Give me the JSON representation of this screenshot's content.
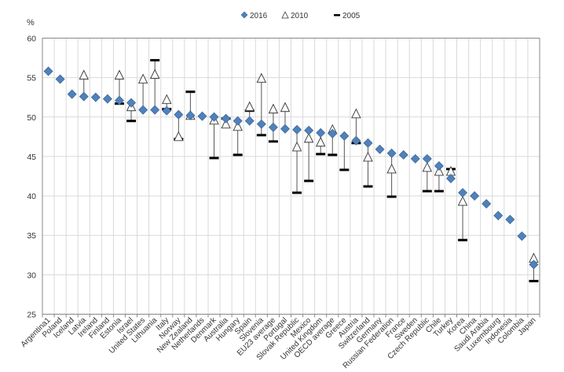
{
  "chart_data": {
    "type": "scatter",
    "title": "",
    "ylabel": "%",
    "xlabel": "",
    "ylim": [
      25,
      60
    ],
    "yticks": [
      25,
      30,
      35,
      40,
      45,
      50,
      55,
      60
    ],
    "grid": true,
    "legend_position": "top-center",
    "categories": [
      "Argentina1",
      "Poland",
      "Iceland",
      "Latvia",
      "Ireland",
      "Finland",
      "Estonia",
      "Israel",
      "United States",
      "Lithuania",
      "Italy",
      "Norway",
      "New Zealand",
      "Netherlands",
      "Denmark",
      "Australia",
      "Hungary",
      "Spain",
      "Slovenia",
      "EU23 average",
      "Portugal",
      "Slovak Republic",
      "Mexico",
      "United Kingdom",
      "OECD average",
      "Greece",
      "Austria",
      "Switzerland",
      "Germany",
      "Russian Federation",
      "France",
      "Sweden",
      "Czech Republic",
      "Chile",
      "Turkey",
      "Korea",
      "China",
      "Saudi Arabia",
      "Luxembourg",
      "Indonesia",
      "Colombia",
      "Japan"
    ],
    "series": [
      {
        "name": "2016",
        "marker": "diamond",
        "color": "#4f81bd",
        "values": [
          55.8,
          54.8,
          52.9,
          52.6,
          52.5,
          52.3,
          52.1,
          51.8,
          50.9,
          50.9,
          50.8,
          50.3,
          50.2,
          50.1,
          50.0,
          49.8,
          49.5,
          49.5,
          49.1,
          48.7,
          48.5,
          48.4,
          48.3,
          48.0,
          47.9,
          47.6,
          47.0,
          46.7,
          45.9,
          45.4,
          45.2,
          44.7,
          44.7,
          43.8,
          42.2,
          40.4,
          40.0,
          39.0,
          37.5,
          37.0,
          34.9,
          31.3
        ]
      },
      {
        "name": "2010",
        "marker": "triangle-open",
        "color": "#ffffff",
        "values": [
          null,
          null,
          null,
          55.2,
          null,
          null,
          55.2,
          51.2,
          54.7,
          55.3,
          52.1,
          47.4,
          50.1,
          null,
          49.5,
          49.0,
          48.7,
          51.2,
          54.8,
          50.9,
          51.1,
          46.1,
          47.2,
          46.7,
          48.3,
          null,
          50.3,
          44.8,
          null,
          43.3,
          null,
          null,
          43.5,
          43.0,
          43.0,
          39.2,
          null,
          null,
          null,
          null,
          null,
          32.0
        ]
      },
      {
        "name": "2005",
        "marker": "dash",
        "color": "#000000",
        "values": [
          null,
          null,
          null,
          null,
          null,
          null,
          51.7,
          49.5,
          null,
          57.2,
          51.0,
          47.2,
          53.2,
          null,
          44.8,
          49.8,
          45.2,
          50.8,
          47.7,
          46.9,
          null,
          40.4,
          41.9,
          45.3,
          45.2,
          43.3,
          46.7,
          41.2,
          null,
          39.9,
          null,
          null,
          40.6,
          40.6,
          43.4,
          34.4,
          null,
          null,
          null,
          null,
          null,
          29.2
        ]
      }
    ]
  }
}
